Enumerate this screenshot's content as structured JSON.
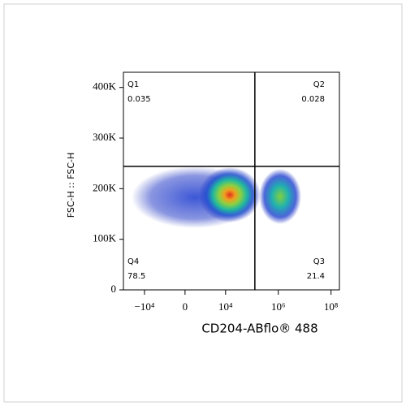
{
  "chart_data": {
    "type": "density",
    "x_label": "CD204-ABflo® 488",
    "y_label": "FSC-H :: FSC-H",
    "xscale": "asinh",
    "xlim": [
      -63000,
      208000000
    ],
    "xticks": [
      {
        "value": -10000,
        "label": "−10⁴"
      },
      0,
      {
        "value": 10000,
        "label": "10⁴"
      },
      {
        "value": 1000000,
        "label": "10⁶"
      },
      {
        "value": 100000000,
        "label": "10⁸"
      }
    ],
    "ylim": [
      0,
      430000
    ],
    "yticks": [
      0,
      {
        "value": 100000,
        "label": "100K"
      },
      {
        "value": 200000,
        "label": "200K"
      },
      {
        "value": 300000,
        "label": "300K"
      },
      {
        "value": 400000,
        "label": "400K"
      }
    ],
    "gates": {
      "x": 129000,
      "y": 244000
    },
    "quadrants": [
      {
        "name": "Q1",
        "value": 0.035
      },
      {
        "name": "Q2",
        "value": 0.028
      },
      {
        "name": "Q3",
        "value": 21.4
      },
      {
        "name": "Q4",
        "value": 78.5
      }
    ]
  }
}
